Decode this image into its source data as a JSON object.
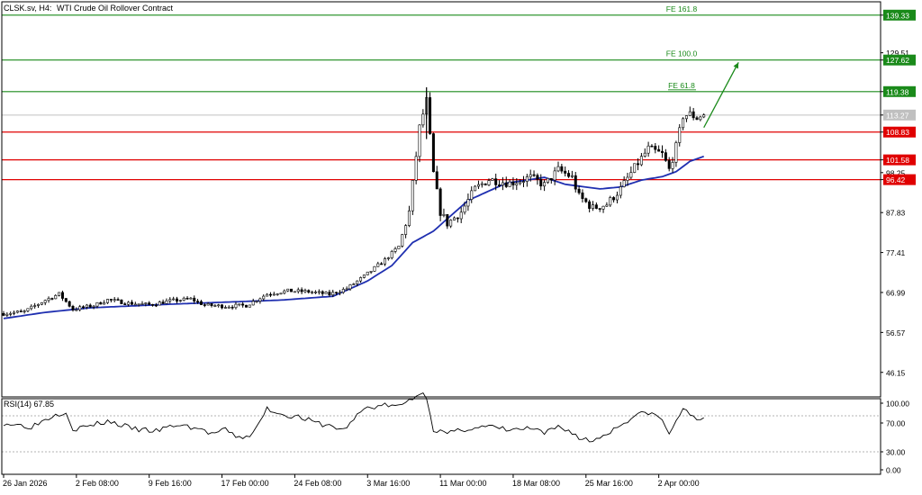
{
  "header": {
    "symbol": "CLSK.sv, H4:",
    "title": "WTI Crude Oil Rollover Contract"
  },
  "colors": {
    "support_line": "#e00000",
    "resistance_line": "#1a8a1a",
    "moving_average": "#1f2fb0",
    "candle": "#000000",
    "arrow": "#1a8a1a",
    "current_price_line": "#c0c0c0"
  },
  "chart_data": [
    {
      "type": "candlestick",
      "ylim": [
        38.0,
        146.0
      ],
      "y_ticks": [
        "139.33",
        "129.51",
        "127.62",
        "119.38",
        "113.27",
        "108.83",
        "101.58",
        "98.25",
        "96.42",
        "87.83",
        "77.41",
        "66.99",
        "56.57",
        "46.15"
      ],
      "x_ticks": [
        "26 Jan 2026",
        "2 Feb 08:00",
        "9 Feb 16:00",
        "17 Feb 00:00",
        "24 Feb 08:00",
        "3 Mar 16:00",
        "11 Mar 00:00",
        "18 Mar 08:00",
        "25 Mar 16:00",
        "2 Apr 00:00"
      ],
      "levels": [
        {
          "label": "FE 161.8",
          "value": 139.33,
          "kind": "resistance"
        },
        {
          "label": "FE 100.0",
          "value": 127.62,
          "kind": "resistance"
        },
        {
          "label": "FE 61.8",
          "value": 119.38,
          "kind": "resistance"
        },
        {
          "label": "",
          "value": 108.83,
          "kind": "support"
        },
        {
          "label": "",
          "value": 101.58,
          "kind": "support"
        },
        {
          "label": "",
          "value": 96.42,
          "kind": "support"
        }
      ],
      "current_price": 113.27,
      "close_anchor": [
        [
          0,
          61.5
        ],
        [
          6,
          62.0
        ],
        [
          12,
          65.0
        ],
        [
          16,
          66.6
        ],
        [
          20,
          62.6
        ],
        [
          26,
          63.6
        ],
        [
          30,
          65.1
        ],
        [
          36,
          64.2
        ],
        [
          42,
          63.8
        ],
        [
          48,
          64.8
        ],
        [
          54,
          65.3
        ],
        [
          58,
          63.7
        ],
        [
          64,
          63.4
        ],
        [
          70,
          63.6
        ],
        [
          76,
          66.6
        ],
        [
          82,
          67.4
        ],
        [
          88,
          67.2
        ],
        [
          94,
          66.5
        ],
        [
          99,
          68.0
        ],
        [
          104,
          71.2
        ],
        [
          110,
          75.5
        ],
        [
          114,
          79.0
        ],
        [
          117,
          88.0
        ],
        [
          120,
          110.0
        ],
        [
          122,
          117.0
        ],
        [
          124,
          98.0
        ],
        [
          126,
          88.0
        ],
        [
          128,
          85.0
        ],
        [
          132,
          88.0
        ],
        [
          136,
          94.0
        ],
        [
          140,
          96.5
        ],
        [
          146,
          95.5
        ],
        [
          152,
          97.0
        ],
        [
          156,
          95.0
        ],
        [
          160,
          99.0
        ],
        [
          164,
          97.0
        ],
        [
          166,
          92.0
        ],
        [
          170,
          89.0
        ],
        [
          174,
          90.0
        ],
        [
          178,
          94.0
        ],
        [
          182,
          99.5
        ],
        [
          186,
          104.5
        ],
        [
          190,
          103.0
        ],
        [
          192,
          99.0
        ],
        [
          194,
          105.0
        ],
        [
          196,
          113.0
        ],
        [
          198,
          113.5
        ],
        [
          200,
          112.5
        ],
        [
          202,
          113.3
        ]
      ],
      "ma_anchor": [
        [
          0,
          60.2
        ],
        [
          12,
          61.8
        ],
        [
          25,
          63.0
        ],
        [
          50,
          64.0
        ],
        [
          80,
          65.0
        ],
        [
          95,
          66.0
        ],
        [
          105,
          70.0
        ],
        [
          112,
          74.0
        ],
        [
          118,
          80.0
        ],
        [
          124,
          83.0
        ],
        [
          134,
          91.0
        ],
        [
          145,
          95.5
        ],
        [
          156,
          97.0
        ],
        [
          162,
          95.2
        ],
        [
          172,
          94.0
        ],
        [
          178,
          94.5
        ],
        [
          184,
          96.3
        ],
        [
          190,
          97.2
        ],
        [
          194,
          98.5
        ],
        [
          198,
          101.2
        ],
        [
          202,
          102.5
        ]
      ],
      "arrow": {
        "from": [
          202,
          110.0
        ],
        "to": [
          212,
          127.0
        ]
      }
    },
    {
      "type": "line",
      "title": "RSI(14) 67.85",
      "series_value": 67.85,
      "ylim": [
        0,
        100
      ],
      "y_ticks": [
        "100.00",
        "70.00",
        "30.00",
        "0.00"
      ],
      "levels": [
        70,
        30
      ],
      "rsi_anchor": [
        [
          0,
          62
        ],
        [
          8,
          58
        ],
        [
          14,
          70
        ],
        [
          18,
          75
        ],
        [
          20,
          55
        ],
        [
          24,
          58
        ],
        [
          30,
          64
        ],
        [
          38,
          55
        ],
        [
          44,
          53
        ],
        [
          50,
          60
        ],
        [
          56,
          56
        ],
        [
          60,
          50
        ],
        [
          64,
          54
        ],
        [
          68,
          45
        ],
        [
          72,
          50
        ],
        [
          76,
          78
        ],
        [
          80,
          72
        ],
        [
          86,
          68
        ],
        [
          90,
          62
        ],
        [
          95,
          58
        ],
        [
          98,
          54
        ],
        [
          104,
          78
        ],
        [
          110,
          82
        ],
        [
          114,
          80
        ],
        [
          118,
          90
        ],
        [
          120,
          95
        ],
        [
          122,
          92
        ],
        [
          124,
          55
        ],
        [
          128,
          50
        ],
        [
          134,
          56
        ],
        [
          140,
          58
        ],
        [
          146,
          54
        ],
        [
          152,
          56
        ],
        [
          156,
          50
        ],
        [
          160,
          58
        ],
        [
          164,
          52
        ],
        [
          166,
          45
        ],
        [
          170,
          42
        ],
        [
          176,
          55
        ],
        [
          182,
          70
        ],
        [
          186,
          74
        ],
        [
          190,
          66
        ],
        [
          192,
          48
        ],
        [
          194,
          66
        ],
        [
          196,
          76
        ],
        [
          198,
          72
        ],
        [
          200,
          68
        ],
        [
          202,
          67.85
        ]
      ]
    }
  ]
}
